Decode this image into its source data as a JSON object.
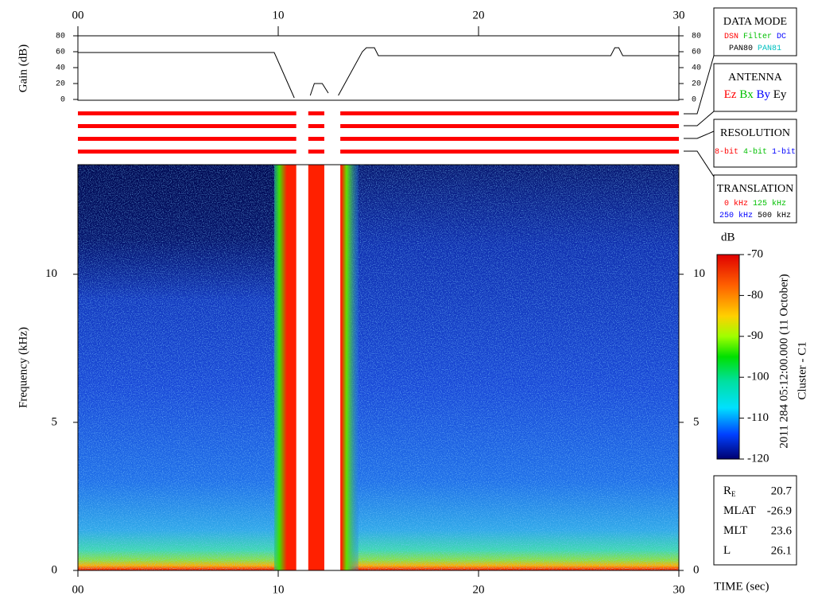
{
  "chart_data": [
    {
      "type": "line",
      "y_label": "Gain (dB)",
      "color": "#000000",
      "xlim": [
        0,
        30
      ],
      "xticks": [
        {
          "value": 0,
          "label": "00"
        },
        10,
        20,
        30
      ],
      "ylim": [
        0,
        80
      ],
      "yticks": [
        0,
        20,
        40,
        60,
        80
      ],
      "x": [
        0,
        9.8,
        10.8,
        11.0,
        11.6,
        11.8,
        12.2,
        12.5,
        12.7,
        13.0,
        14.2,
        14.4,
        14.8,
        15.0,
        26.6,
        26.8,
        27.0,
        27.2,
        30
      ],
      "values": [
        59,
        59,
        2,
        null,
        5,
        20,
        20,
        8,
        null,
        5,
        60,
        65,
        65,
        55,
        55,
        65,
        65,
        55,
        55
      ]
    },
    {
      "type": "heatmap",
      "x_label": "TIME (sec)",
      "y_label": "Frequency (kHz)",
      "xlim": [
        0,
        30
      ],
      "xticks": [
        {
          "value": 0,
          "label": "00"
        },
        10,
        20,
        30
      ],
      "ylim": [
        0,
        13.7
      ],
      "yticks": [
        0,
        5,
        10
      ],
      "burst": {
        "start": 9.8,
        "end": 14.0
      },
      "colorbar": {
        "label": "dB",
        "lim": [
          -120,
          -70
        ],
        "ticks": [
          -120,
          -110,
          -100,
          -90,
          -80,
          -70
        ]
      },
      "annotations": [
        "2011 284 05:12:00.000 (11 October)",
        "Cluster - C1"
      ]
    }
  ],
  "mode_bars": {
    "color": "#ff0000",
    "rows": 4,
    "segments": [
      {
        "start": 0,
        "end": 10.9
      },
      {
        "start": 11.5,
        "end": 12.3
      },
      {
        "start": 13.1,
        "end": 30
      }
    ]
  },
  "panels": [
    {
      "title": "DATA MODE",
      "lines": [
        [
          {
            "text": "DSN",
            "color": "#ff0000"
          },
          {
            "text": "Filter",
            "color": "#00c000"
          },
          {
            "text": "DC",
            "color": "#0000ff"
          }
        ],
        [
          {
            "text": "PAN80",
            "color": "#000000"
          },
          {
            "text": "PAN81",
            "color": "#00c0c0"
          }
        ]
      ]
    },
    {
      "title": "ANTENNA",
      "lines": [
        [
          {
            "text": "Ez",
            "color": "#ff0000"
          },
          {
            "text": "Bx",
            "color": "#00c000"
          },
          {
            "text": "By",
            "color": "#0000ff"
          },
          {
            "text": "Ey",
            "color": "#000000"
          }
        ]
      ]
    },
    {
      "title": "RESOLUTION",
      "lines": [
        [
          {
            "text": "8-bit",
            "color": "#ff0000"
          },
          {
            "text": "4-bit",
            "color": "#00c000"
          },
          {
            "text": "1-bit",
            "color": "#0000ff"
          }
        ]
      ]
    },
    {
      "title": "TRANSLATION",
      "lines": [
        [
          {
            "text": "0 kHz",
            "color": "#ff0000"
          },
          {
            "text": "125 kHz",
            "color": "#00c000"
          }
        ],
        [
          {
            "text": "250 kHz",
            "color": "#0000ff"
          },
          {
            "text": "500 kHz",
            "color": "#000000"
          }
        ]
      ]
    }
  ],
  "ephemeris": [
    {
      "label": "R",
      "sub": "E",
      "value": 20.7
    },
    {
      "label": "MLAT",
      "value": -26.9
    },
    {
      "label": "MLT",
      "value": 23.6
    },
    {
      "label": "L",
      "value": 26.1
    }
  ]
}
